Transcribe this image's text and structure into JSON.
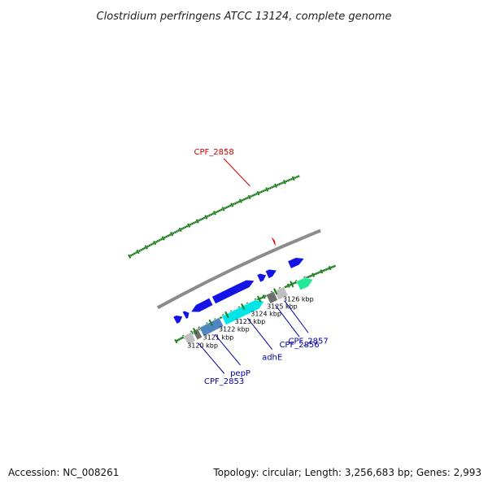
{
  "title": "Clostridium perfringens ATCC 13124, complete genome",
  "footer": {
    "accession": "Accession: NC_008261",
    "summary": "Topology: circular; Length: 3,256,683 bp; Genes: 2,993"
  },
  "colors": {
    "backbone": "#8c8c8c",
    "tick": "#1a7a1a",
    "gene_cds": "#1414e6",
    "cyan": "#00e6e6",
    "steel": "#4f86bf",
    "light_gray": "#bfbfbf",
    "dark_gray": "#6e6e6e",
    "green": "#22e89a",
    "red": "#ee0000",
    "label_blue": "#0000aa",
    "label_red": "#cc0000"
  },
  "kbp_labels": [
    {
      "kbp": 3120,
      "text": "3120 kbp"
    },
    {
      "kbp": 3121,
      "text": "3121 kbp"
    },
    {
      "kbp": 3122,
      "text": "3122 kbp"
    },
    {
      "kbp": 3123,
      "text": "3123 kbp"
    },
    {
      "kbp": 3124,
      "text": "3124 kbp"
    },
    {
      "kbp": 3125,
      "text": "3125 kbp"
    },
    {
      "kbp": 3126,
      "text": "3126 kbp"
    }
  ],
  "genes": [
    {
      "name": "CPF_2853",
      "ring": "cds",
      "start_kbp": 3119.3,
      "end_kbp": 3119.78,
      "color": "#1414e6",
      "arrow": "right"
    },
    {
      "name": "CPF_2853",
      "ring": "cog",
      "start_kbp": 3119.3,
      "end_kbp": 3119.78,
      "color": "#bfbfbf",
      "arrow": "none"
    },
    {
      "name": "",
      "ring": "cds",
      "start_kbp": 3119.88,
      "end_kbp": 3120.2,
      "color": "#1414e6",
      "arrow": "right"
    },
    {
      "name": "",
      "ring": "cog",
      "start_kbp": 3119.88,
      "end_kbp": 3120.2,
      "color": "#6e6e6e",
      "arrow": "none"
    },
    {
      "name": "pepP",
      "ring": "cds",
      "start_kbp": 3120.3,
      "end_kbp": 3121.55,
      "color": "#1414e6",
      "arrow": "left"
    },
    {
      "name": "pepP",
      "ring": "cog",
      "start_kbp": 3120.3,
      "end_kbp": 3121.55,
      "color": "#4f86bf",
      "arrow": "none"
    },
    {
      "name": "adhE",
      "ring": "cds",
      "start_kbp": 3121.7,
      "end_kbp": 3124.2,
      "color": "#1414e6",
      "arrow": "right"
    },
    {
      "name": "adhE",
      "ring": "cog",
      "start_kbp": 3121.7,
      "end_kbp": 3124.2,
      "color": "#00e6e6",
      "arrow": "right"
    },
    {
      "name": "CPF_2856",
      "ring": "cds",
      "start_kbp": 3124.45,
      "end_kbp": 3124.92,
      "color": "#1414e6",
      "arrow": "right"
    },
    {
      "name": "CPF_2856",
      "ring": "cog",
      "start_kbp": 3124.45,
      "end_kbp": 3124.92,
      "color": "#6e6e6e",
      "arrow": "none"
    },
    {
      "name": "CPF_2857",
      "ring": "cds",
      "start_kbp": 3124.96,
      "end_kbp": 3125.55,
      "color": "#1414e6",
      "arrow": "right"
    },
    {
      "name": "CPF_2857",
      "ring": "cog",
      "start_kbp": 3124.96,
      "end_kbp": 3125.55,
      "color": "#bfbfbf",
      "arrow": "none"
    },
    {
      "name": "CPF_2858",
      "ring": "trna",
      "start_kbp": 3126.0,
      "end_kbp": 3126.12,
      "color": "#ee0000",
      "arrow": "right"
    },
    {
      "name": "",
      "ring": "cds",
      "start_kbp": 3126.3,
      "end_kbp": 3127.2,
      "color": "#1414e6",
      "arrow": "right"
    },
    {
      "name": "",
      "ring": "cog",
      "start_kbp": 3126.3,
      "end_kbp": 3127.2,
      "color": "#22e89a",
      "arrow": "right"
    }
  ],
  "gene_labels": [
    {
      "text": "CPF_2853",
      "anchor_kbp": 3119.85,
      "color": "#0000aa"
    },
    {
      "text": "pepP",
      "anchor_kbp": 3120.9,
      "color": "#0000aa"
    },
    {
      "text": "adhE",
      "anchor_kbp": 3122.95,
      "color": "#0000aa"
    },
    {
      "text": "CPF_2856",
      "anchor_kbp": 3124.68,
      "color": "#0000aa"
    },
    {
      "text": "CPF_2857",
      "anchor_kbp": 3125.25,
      "color": "#0000aa"
    },
    {
      "text": "CPF_2858",
      "anchor_kbp": 3126.06,
      "color": "#cc0000"
    }
  ]
}
